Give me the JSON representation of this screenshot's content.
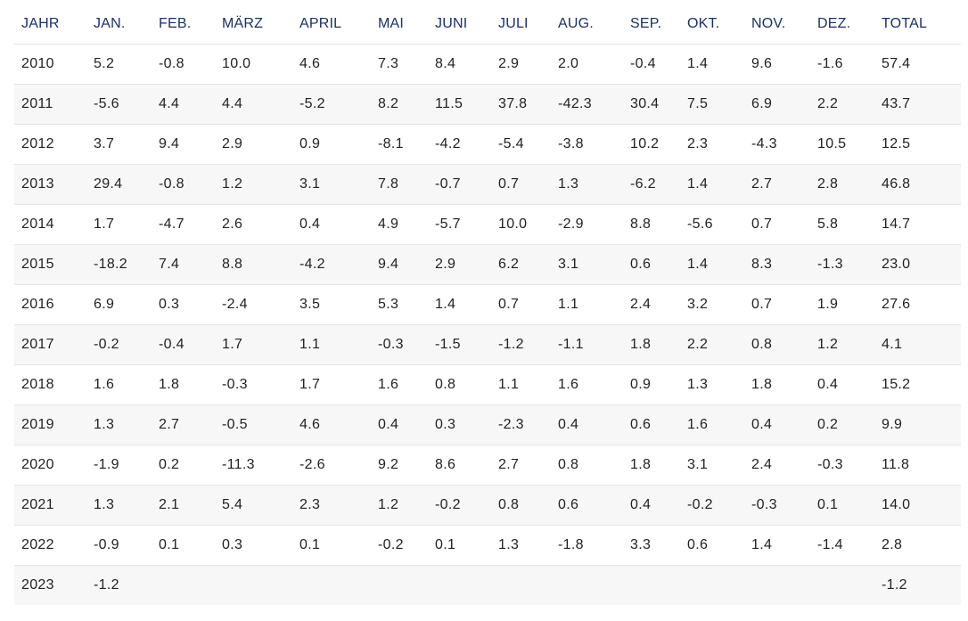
{
  "chart_data": {
    "type": "table",
    "columns": [
      "JAHR",
      "JAN.",
      "FEB.",
      "MÄRZ",
      "APRIL",
      "MAI",
      "JUNI",
      "JULI",
      "AUG.",
      "SEP.",
      "OKT.",
      "NOV.",
      "DEZ.",
      "TOTAL"
    ],
    "rows": [
      [
        "2010",
        "5.2",
        "-0.8",
        "10.0",
        "4.6",
        "7.3",
        "8.4",
        "2.9",
        "2.0",
        "-0.4",
        "1.4",
        "9.6",
        "-1.6",
        "57.4"
      ],
      [
        "2011",
        "-5.6",
        "4.4",
        "4.4",
        "-5.2",
        "8.2",
        "11.5",
        "37.8",
        "-42.3",
        "30.4",
        "7.5",
        "6.9",
        "2.2",
        "43.7"
      ],
      [
        "2012",
        "3.7",
        "9.4",
        "2.9",
        "0.9",
        "-8.1",
        "-4.2",
        "-5.4",
        "-3.8",
        "10.2",
        "2.3",
        "-4.3",
        "10.5",
        "12.5"
      ],
      [
        "2013",
        "29.4",
        "-0.8",
        "1.2",
        "3.1",
        "7.8",
        "-0.7",
        "0.7",
        "1.3",
        "-6.2",
        "1.4",
        "2.7",
        "2.8",
        "46.8"
      ],
      [
        "2014",
        "1.7",
        "-4.7",
        "2.6",
        "0.4",
        "4.9",
        "-5.7",
        "10.0",
        "-2.9",
        "8.8",
        "-5.6",
        "0.7",
        "5.8",
        "14.7"
      ],
      [
        "2015",
        "-18.2",
        "7.4",
        "8.8",
        "-4.2",
        "9.4",
        "2.9",
        "6.2",
        "3.1",
        "0.6",
        "1.4",
        "8.3",
        "-1.3",
        "23.0"
      ],
      [
        "2016",
        "6.9",
        "0.3",
        "-2.4",
        "3.5",
        "5.3",
        "1.4",
        "0.7",
        "1.1",
        "2.4",
        "3.2",
        "0.7",
        "1.9",
        "27.6"
      ],
      [
        "2017",
        "-0.2",
        "-0.4",
        "1.7",
        "1.1",
        "-0.3",
        "-1.5",
        "-1.2",
        "-1.1",
        "1.8",
        "2.2",
        "0.8",
        "1.2",
        "4.1"
      ],
      [
        "2018",
        "1.6",
        "1.8",
        "-0.3",
        "1.7",
        "1.6",
        "0.8",
        "1.1",
        "1.6",
        "0.9",
        "1.3",
        "1.8",
        "0.4",
        "15.2"
      ],
      [
        "2019",
        "1.3",
        "2.7",
        "-0.5",
        "4.6",
        "0.4",
        "0.3",
        "-2.3",
        "0.4",
        "0.6",
        "1.6",
        "0.4",
        "0.2",
        "9.9"
      ],
      [
        "2020",
        "-1.9",
        "0.2",
        "-11.3",
        "-2.6",
        "9.2",
        "8.6",
        "2.7",
        "0.8",
        "1.8",
        "3.1",
        "2.4",
        "-0.3",
        "11.8"
      ],
      [
        "2021",
        "1.3",
        "2.1",
        "5.4",
        "2.3",
        "1.2",
        "-0.2",
        "0.8",
        "0.6",
        "0.4",
        "-0.2",
        "-0.3",
        "0.1",
        "14.0"
      ],
      [
        "2022",
        "-0.9",
        "0.1",
        "0.3",
        "0.1",
        "-0.2",
        "0.1",
        "1.3",
        "-1.8",
        "3.3",
        "0.6",
        "1.4",
        "-1.4",
        "2.8"
      ],
      [
        "2023",
        "-1.2",
        "",
        "",
        "",
        "",
        "",
        "",
        "",
        "",
        "",
        "",
        "",
        "-1.2"
      ]
    ]
  },
  "colors": {
    "header_text": "#1a2f6b",
    "cell_text": "#222222",
    "stripe": "#f7f7f7",
    "rule": "#e4e4e4"
  }
}
